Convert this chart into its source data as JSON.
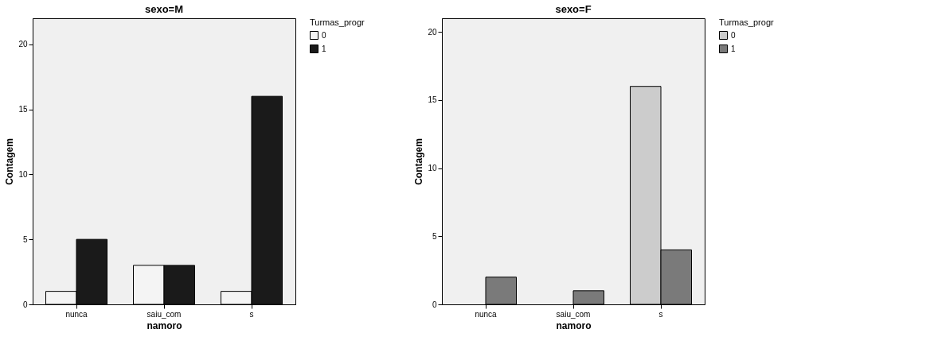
{
  "chart_data": [
    {
      "type": "bar",
      "title": "sexo=M",
      "xlabel": "namoro",
      "ylabel": "Contagem",
      "legend_title": "Turmas_progr",
      "legend": "top right",
      "grid": false,
      "categories": [
        "nunca",
        "saiu_com",
        "s"
      ],
      "series": [
        {
          "name": "0",
          "color": "#f4f4f4",
          "values": [
            1,
            3,
            1
          ]
        },
        {
          "name": "1",
          "color": "#1a1a1a",
          "values": [
            5,
            3,
            16
          ]
        }
      ],
      "ylim": [
        0,
        22
      ],
      "yticks": [
        0,
        5,
        10,
        15,
        20
      ]
    },
    {
      "type": "bar",
      "title": "sexo=F",
      "xlabel": "namoro",
      "ylabel": "Contagem",
      "legend_title": "Turmas_progr",
      "legend": "top right",
      "grid": false,
      "categories": [
        "nunca",
        "saiu_com",
        "s"
      ],
      "series": [
        {
          "name": "0",
          "color": "#cccccc",
          "values": [
            null,
            null,
            16
          ]
        },
        {
          "name": "1",
          "color": "#7a7a7a",
          "values": [
            2,
            1,
            4
          ]
        }
      ],
      "ylim": [
        0,
        21
      ],
      "yticks": [
        0,
        5,
        10,
        15,
        20
      ]
    }
  ]
}
